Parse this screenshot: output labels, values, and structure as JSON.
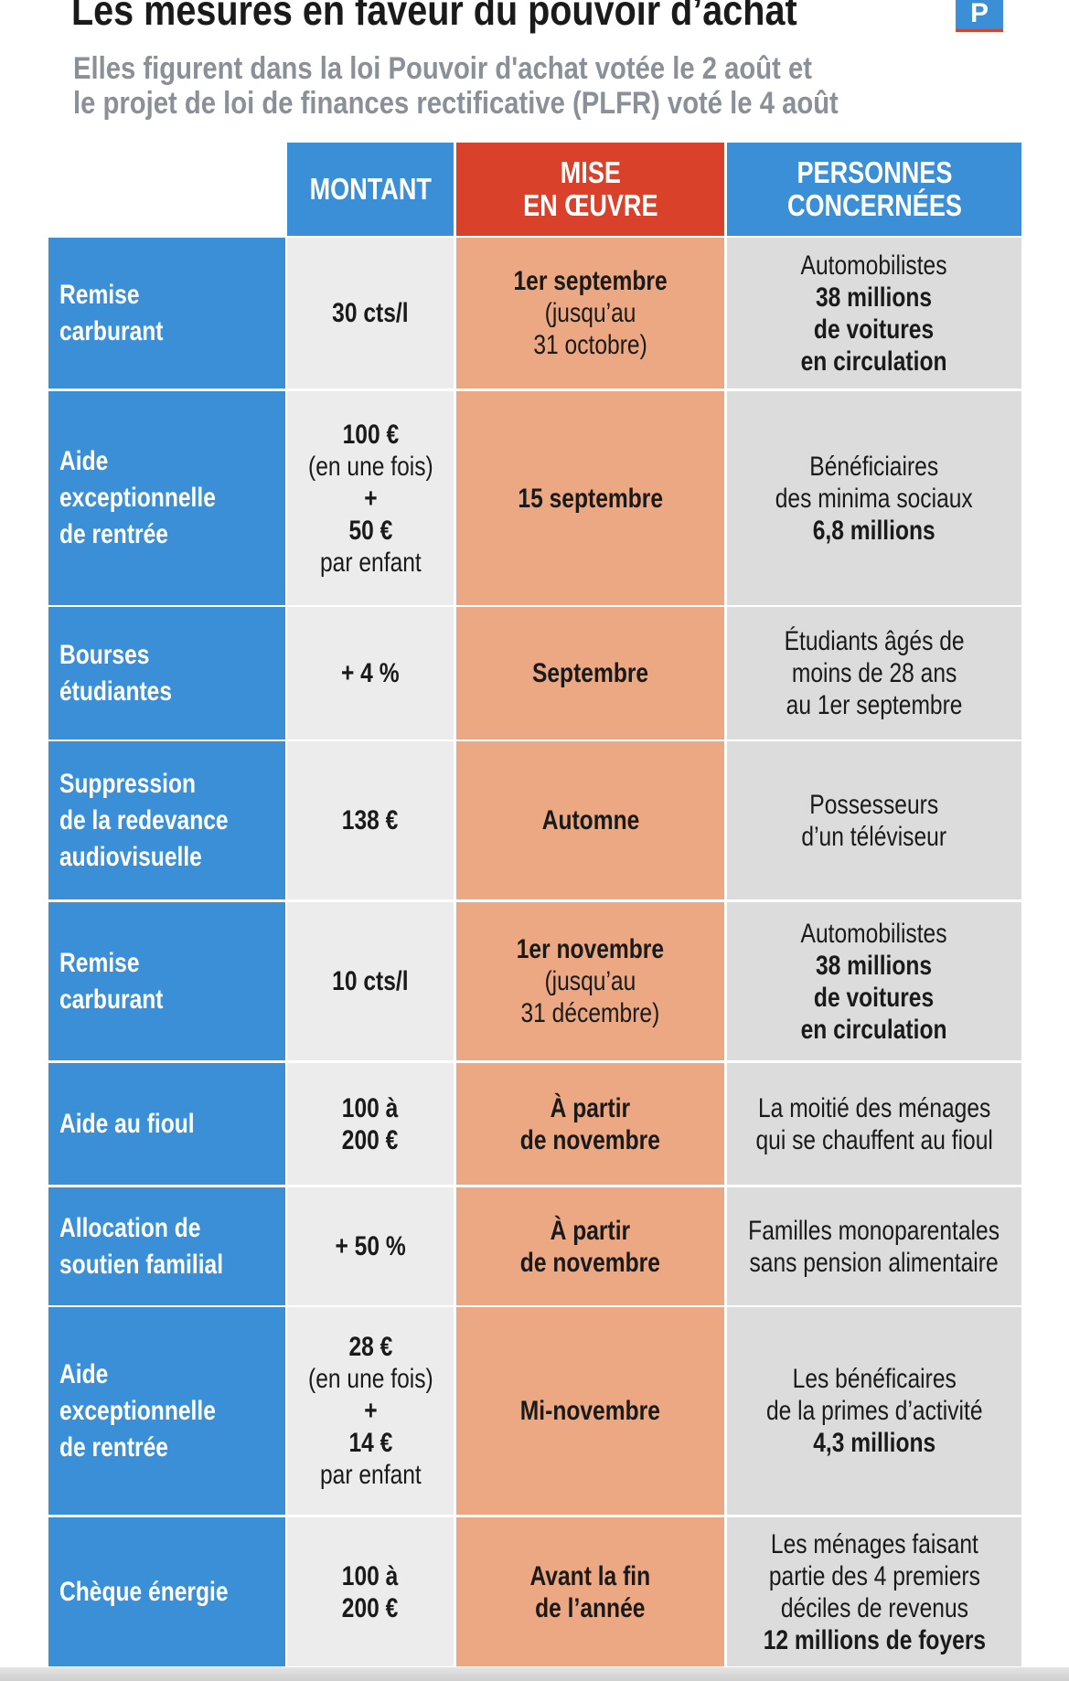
{
  "header": {
    "title": "Les mesures en faveur du pouvoir d’achat",
    "logo": "P",
    "subtitle": [
      "Elles figurent dans la loi Pouvoir d'achat votée le 2 août et",
      "le projet de loi de finances rectificative (PLFR) voté le 4 août"
    ]
  },
  "table": {
    "columns": [
      [
        "MONTANT"
      ],
      [
        "MISE",
        "EN ŒUVRE"
      ],
      [
        "PERSONNES",
        "CONCERNÉES"
      ]
    ],
    "rows": [
      {
        "label": [
          "Remise",
          "carburant"
        ],
        "montant": [
          {
            "text": "30 cts/l",
            "bold": true
          }
        ],
        "mise": [
          {
            "text": "1er septembre",
            "bold": true
          },
          {
            "text": "(jusqu’au",
            "bold": false
          },
          {
            "text": "31 octobre)",
            "bold": false
          }
        ],
        "personnes": [
          {
            "text": "Automobilistes",
            "bold": false
          },
          {
            "text": "38 millions",
            "bold": true
          },
          {
            "text": "de voitures",
            "bold": true
          },
          {
            "text": "en circulation",
            "bold": true
          }
        ]
      },
      {
        "label": [
          "Aide",
          "exceptionnelle",
          "de rentrée"
        ],
        "montant": [
          {
            "text": "100 €",
            "bold": true
          },
          {
            "text": "(en une fois)",
            "bold": false
          },
          {
            "text": "+",
            "bold": true
          },
          {
            "text": "50 €",
            "bold": true
          },
          {
            "text": "par enfant",
            "bold": false
          }
        ],
        "mise": [
          {
            "text": "15 septembre",
            "bold": true
          }
        ],
        "personnes": [
          {
            "text": "Bénéficiaires",
            "bold": false
          },
          {
            "text": "des minima sociaux",
            "bold": false
          },
          {
            "text": "6,8 millions",
            "bold": true
          }
        ]
      },
      {
        "label": [
          "Bourses",
          "étudiantes"
        ],
        "montant": [
          {
            "text": "+ 4 %",
            "bold": true
          }
        ],
        "mise": [
          {
            "text": "Septembre",
            "bold": true
          }
        ],
        "personnes": [
          {
            "text": "Étudiants âgés de",
            "bold": false
          },
          {
            "text": "moins de 28 ans",
            "bold": false
          },
          {
            "text": "au 1er septembre",
            "bold": false
          }
        ]
      },
      {
        "label": [
          "Suppression",
          "de la redevance",
          "audiovisuelle"
        ],
        "montant": [
          {
            "text": "138 €",
            "bold": true
          }
        ],
        "mise": [
          {
            "text": "Automne",
            "bold": true
          }
        ],
        "personnes": [
          {
            "text": "Possesseurs",
            "bold": false
          },
          {
            "text": "d’un téléviseur",
            "bold": false
          }
        ]
      },
      {
        "label": [
          "Remise",
          "carburant"
        ],
        "montant": [
          {
            "text": "10 cts/l",
            "bold": true
          }
        ],
        "mise": [
          {
            "text": "1er novembre",
            "bold": true
          },
          {
            "text": "(jusqu’au",
            "bold": false
          },
          {
            "text": "31 décembre)",
            "bold": false
          }
        ],
        "personnes": [
          {
            "text": "Automobilistes",
            "bold": false
          },
          {
            "text": "38 millions",
            "bold": true
          },
          {
            "text": "de voitures",
            "bold": true
          },
          {
            "text": "en circulation",
            "bold": true
          }
        ]
      },
      {
        "label": [
          "Aide au fioul"
        ],
        "montant": [
          {
            "text": "100 à",
            "bold": true
          },
          {
            "text": "200 €",
            "bold": true
          }
        ],
        "mise": [
          {
            "text": "À partir",
            "bold": true
          },
          {
            "text": "de novembre",
            "bold": true
          }
        ],
        "personnes": [
          {
            "text": "La moitié des ménages",
            "bold": false
          },
          {
            "text": "qui se chauffent au fioul",
            "bold": false
          }
        ]
      },
      {
        "label": [
          "Allocation de",
          "soutien familial"
        ],
        "montant": [
          {
            "text": "+ 50 %",
            "bold": true
          }
        ],
        "mise": [
          {
            "text": "À partir",
            "bold": true
          },
          {
            "text": "de novembre",
            "bold": true
          }
        ],
        "personnes": [
          {
            "text": "Familles monoparentales",
            "bold": false
          },
          {
            "text": "sans pension alimentaire",
            "bold": false
          }
        ]
      },
      {
        "label": [
          "Aide",
          "exceptionnelle",
          "de rentrée"
        ],
        "montant": [
          {
            "text": "28 €",
            "bold": true
          },
          {
            "text": "(en une fois)",
            "bold": false
          },
          {
            "text": "+",
            "bold": true
          },
          {
            "text": "14 €",
            "bold": true
          },
          {
            "text": "par enfant",
            "bold": false
          }
        ],
        "mise": [
          {
            "text": "Mi-novembre",
            "bold": true
          }
        ],
        "personnes": [
          {
            "text": "Les bénéficaires",
            "bold": false
          },
          {
            "text": "de la primes d’activité",
            "bold": false
          },
          {
            "text": "4,3 millions",
            "bold": true
          }
        ]
      },
      {
        "label": [
          "Chèque énergie"
        ],
        "montant": [
          {
            "text": "100 à",
            "bold": true
          },
          {
            "text": "200 €",
            "bold": true
          }
        ],
        "mise": [
          {
            "text": "Avant la fin",
            "bold": true
          },
          {
            "text": "de l’année",
            "bold": true
          }
        ],
        "personnes": [
          {
            "text": "Les ménages faisant",
            "bold": false
          },
          {
            "text": "partie des 4 premiers",
            "bold": false
          },
          {
            "text": "déciles de revenus",
            "bold": false
          },
          {
            "text": "12 millions de foyers",
            "bold": true
          }
        ]
      }
    ]
  }
}
